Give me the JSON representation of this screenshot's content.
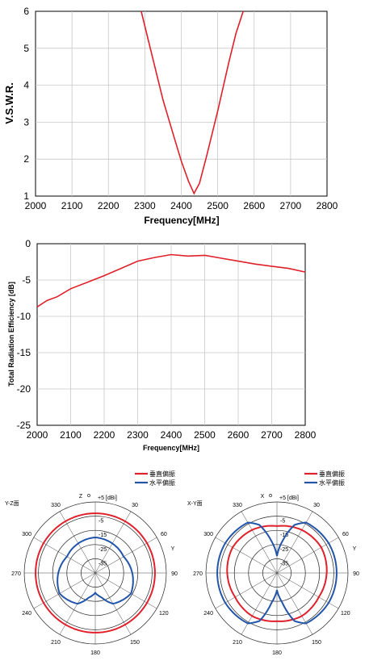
{
  "chart_data": [
    {
      "type": "line",
      "title": "",
      "xlabel": "Frequency[MHz]",
      "ylabel": "V.S.W.R.",
      "xlim": [
        2000,
        2800
      ],
      "ylim": [
        1,
        6
      ],
      "grid": true,
      "x_ticks": [
        "2000",
        "2100",
        "2200",
        "2300",
        "2400",
        "2500",
        "2600",
        "2700",
        "2800"
      ],
      "y_ticks": [
        "1",
        "2",
        "3",
        "4",
        "5",
        "6"
      ],
      "series": [
        {
          "color": "#e0202a",
          "x": [
            2290,
            2320,
            2350,
            2380,
            2400,
            2420,
            2435,
            2450,
            2470,
            2500,
            2530,
            2550,
            2570
          ],
          "y": [
            6.0,
            4.8,
            3.6,
            2.6,
            1.95,
            1.4,
            1.07,
            1.35,
            2.1,
            3.3,
            4.6,
            5.4,
            6.0
          ]
        }
      ]
    },
    {
      "type": "line",
      "title": "",
      "xlabel": "Frequency[MHz]",
      "ylabel": "Total Radiation Efficiency [dB]",
      "xlim": [
        2000,
        2800
      ],
      "ylim": [
        -25,
        0
      ],
      "grid": true,
      "x_ticks": [
        "2000",
        "2100",
        "2200",
        "2300",
        "2400",
        "2500",
        "2600",
        "2700",
        "2800"
      ],
      "y_ticks": [
        "0",
        "-5",
        "-10",
        "-15",
        "-20",
        "-25"
      ],
      "series": [
        {
          "color": "#e0202a",
          "x": [
            2000,
            2030,
            2060,
            2100,
            2150,
            2200,
            2250,
            2300,
            2350,
            2400,
            2450,
            2500,
            2550,
            2600,
            2650,
            2700,
            2750,
            2800
          ],
          "y": [
            -8.7,
            -7.8,
            -7.3,
            -6.2,
            -5.3,
            -4.4,
            -3.4,
            -2.4,
            -1.9,
            -1.5,
            -1.7,
            -1.6,
            -2.0,
            -2.4,
            -2.8,
            -3.1,
            -3.4,
            -3.9
          ]
        }
      ]
    },
    {
      "type": "polar",
      "plane_label": "Y-Z面",
      "unit_label": "+5 [dBi]",
      "axis_labels": {
        "top": "Z",
        "right": "Y"
      },
      "ring_labels": [
        "+5 [dBi]",
        "-5",
        "-15",
        "-25",
        "-35"
      ],
      "angle_labels": [
        "0",
        "30",
        "60",
        "90",
        "120",
        "150",
        "180",
        "210",
        "240",
        "270",
        "300",
        "330"
      ],
      "legend": [
        "垂直偏振",
        "水平偏振"
      ],
      "series": [
        {
          "name": "垂直偏振",
          "color": "#e0202a",
          "angles": [
            0,
            30,
            60,
            90,
            120,
            150,
            180,
            210,
            240,
            270,
            300,
            330
          ],
          "values": [
            -3,
            -3,
            -3,
            -3,
            -3,
            -3,
            -3,
            -3,
            -3,
            -3,
            -3,
            -3
          ]
        },
        {
          "name": "水平偏振",
          "color": "#2255aa",
          "angles": [
            0,
            30,
            60,
            90,
            120,
            150,
            165,
            180,
            195,
            210,
            240,
            270,
            300,
            330
          ],
          "values": [
            -20,
            -21,
            -22,
            -19,
            -16,
            -20,
            -27,
            -31,
            -27,
            -20,
            -16,
            -19,
            -22,
            -21
          ]
        }
      ]
    },
    {
      "type": "polar",
      "plane_label": "X-Y面",
      "unit_label": "+5 [dBi]",
      "axis_labels": {
        "top": "X",
        "right": "Y"
      },
      "ring_labels": [
        "+5 [dBi]",
        "-5",
        "-15",
        "-25",
        "-35"
      ],
      "angle_labels": [
        "0",
        "30",
        "60",
        "90",
        "120",
        "150",
        "180",
        "210",
        "240",
        "270",
        "300",
        "330"
      ],
      "legend": [
        "垂直偏振",
        "水平偏振"
      ],
      "series": [
        {
          "name": "垂直偏振",
          "color": "#e0202a",
          "angles": [
            0,
            30,
            60,
            90,
            120,
            150,
            180,
            210,
            240,
            270,
            300,
            330
          ],
          "values": [
            -12,
            -10,
            -9,
            -10,
            -11,
            -10,
            -11,
            -10,
            -11,
            -10,
            -9,
            -10
          ]
        },
        {
          "name": "水平偏振",
          "color": "#2255aa",
          "angles": [
            0,
            10,
            20,
            30,
            60,
            90,
            120,
            150,
            160,
            170,
            180,
            190,
            200,
            210,
            240,
            270,
            300,
            330,
            340,
            350
          ],
          "values": [
            -33,
            -22,
            -9,
            -4,
            -3,
            -3,
            -3,
            -4,
            -9,
            -24,
            -33,
            -24,
            -9,
            -4,
            -3,
            -3,
            -3,
            -4,
            -9,
            -22
          ]
        }
      ]
    }
  ]
}
